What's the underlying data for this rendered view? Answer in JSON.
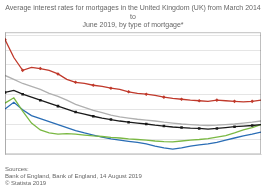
{
  "chart_data": {
    "type": "line",
    "title": "Average interest rates for mortgages in the United Kingdom (UK) from March 2014 to\nJune 2019, by type of mortgage*",
    "annotations": [
      "Sources:\nBank of England, Bank of England, 14 August 2019\n© Statista 2019"
    ],
    "x": [
      0,
      1,
      2,
      3,
      4,
      5,
      6,
      7,
      8,
      9,
      10,
      11,
      12,
      13,
      14,
      15,
      16,
      17,
      18,
      19,
      20,
      21,
      22,
      23,
      24,
      25,
      26,
      27,
      28,
      29
    ],
    "xlim": [
      0,
      29
    ],
    "xticks": [],
    "ylim": [
      1.0,
      5.1
    ],
    "yticks": [
      1.5,
      2,
      2.5,
      3,
      3.5,
      4,
      4.5,
      5
    ],
    "grid": true,
    "tick_labels": false,
    "series": [
      {
        "color": "#c0392b",
        "marker": "diamond",
        "values": [
          4.85,
          4.25,
          3.82,
          3.92,
          3.88,
          3.82,
          3.7,
          3.52,
          3.42,
          3.38,
          3.32,
          3.28,
          3.22,
          3.18,
          3.1,
          3.05,
          3.02,
          2.98,
          2.92,
          2.88,
          2.85,
          2.82,
          2.8,
          2.78,
          2.82,
          2.8,
          2.78,
          2.76,
          2.78,
          2.82
        ]
      },
      {
        "color": "#b0b0b0",
        "marker": "none",
        "values": [
          3.65,
          3.52,
          3.38,
          3.28,
          3.18,
          3.05,
          2.95,
          2.82,
          2.68,
          2.58,
          2.48,
          2.4,
          2.32,
          2.26,
          2.22,
          2.18,
          2.15,
          2.12,
          2.08,
          2.05,
          2.02,
          2.0,
          1.98,
          1.97,
          1.98,
          2.0,
          2.02,
          2.05,
          2.08,
          2.12
        ]
      },
      {
        "color": "#1a1a1a",
        "marker": "square",
        "values": [
          3.08,
          3.15,
          3.02,
          2.92,
          2.82,
          2.72,
          2.62,
          2.52,
          2.42,
          2.35,
          2.28,
          2.22,
          2.17,
          2.12,
          2.08,
          2.05,
          2.02,
          1.98,
          1.95,
          1.92,
          1.9,
          1.88,
          1.87,
          1.85,
          1.87,
          1.9,
          1.93,
          1.95,
          1.97,
          2.0
        ]
      },
      {
        "color": "#7ab843",
        "marker": "none",
        "values": [
          2.72,
          2.9,
          2.45,
          2.05,
          1.82,
          1.72,
          1.68,
          1.7,
          1.68,
          1.65,
          1.62,
          1.6,
          1.57,
          1.55,
          1.52,
          1.5,
          1.48,
          1.45,
          1.43,
          1.42,
          1.45,
          1.48,
          1.5,
          1.53,
          1.58,
          1.63,
          1.72,
          1.82,
          1.9,
          2.0
        ]
      },
      {
        "color": "#2a6db5",
        "marker": "none",
        "values": [
          2.52,
          2.75,
          2.5,
          2.3,
          2.2,
          2.1,
          2.0,
          1.9,
          1.8,
          1.72,
          1.65,
          1.58,
          1.52,
          1.48,
          1.44,
          1.4,
          1.35,
          1.28,
          1.22,
          1.18,
          1.22,
          1.28,
          1.32,
          1.35,
          1.4,
          1.48,
          1.55,
          1.62,
          1.68,
          1.75
        ]
      }
    ]
  }
}
